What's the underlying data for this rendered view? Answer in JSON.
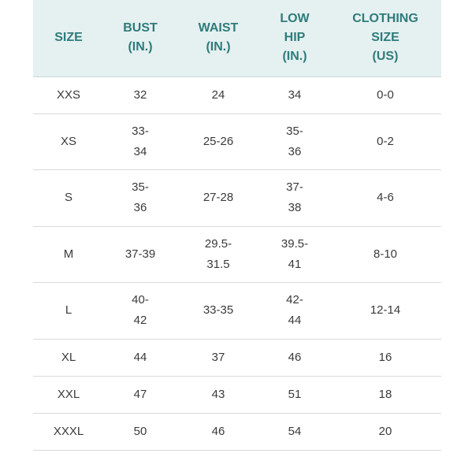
{
  "table": {
    "headers": {
      "size": "SIZE",
      "bust": "BUST\n(IN.)",
      "waist": "WAIST\n(IN.)",
      "low_hip": "LOW\nHIP\n(IN.)",
      "clothing_size": "CLOTHING\nSIZE\n(US)"
    },
    "rows": [
      {
        "size": "XXS",
        "bust": "32",
        "waist": "24",
        "low_hip": "34",
        "clothing_size": "0-0"
      },
      {
        "size": "XS",
        "bust": "33-\n34",
        "waist": "25-26",
        "low_hip": "35-\n36",
        "clothing_size": "0-2"
      },
      {
        "size": "S",
        "bust": "35-\n36",
        "waist": "27-28",
        "low_hip": "37-\n38",
        "clothing_size": "4-6"
      },
      {
        "size": "M",
        "bust": "37-39",
        "waist": "29.5-\n31.5",
        "low_hip": "39.5-\n41",
        "clothing_size": "8-10"
      },
      {
        "size": "L",
        "bust": "40-\n42",
        "waist": "33-35",
        "low_hip": "42-\n44",
        "clothing_size": "12-14"
      },
      {
        "size": "XL",
        "bust": "44",
        "waist": "37",
        "low_hip": "46",
        "clothing_size": "16"
      },
      {
        "size": "XXL",
        "bust": "47",
        "waist": "43",
        "low_hip": "51",
        "clothing_size": "18"
      },
      {
        "size": "XXXL",
        "bust": "50",
        "waist": "46",
        "low_hip": "54",
        "clothing_size": "20"
      }
    ]
  },
  "colors": {
    "header_background": "#e5f0f0",
    "header_text": "#2f7b7b",
    "row_divider": "#d9d9d9",
    "body_text": "#3a3a3a"
  }
}
